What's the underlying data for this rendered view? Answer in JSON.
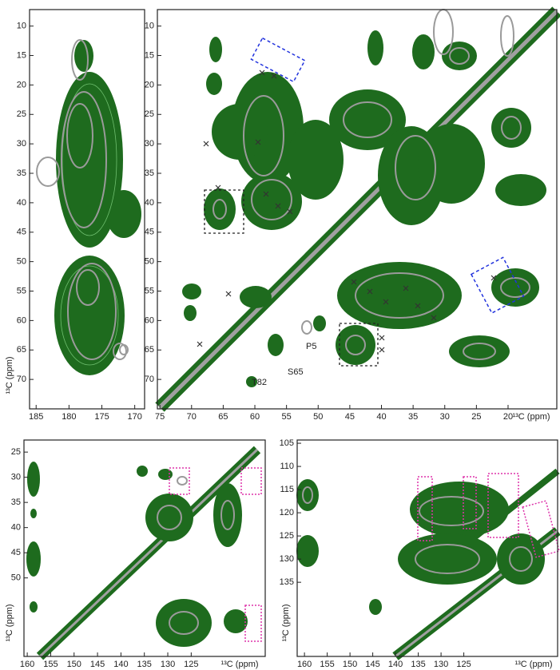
{
  "chart_data": [
    {
      "type": "contour",
      "xlim": [
        186,
        168.5
      ],
      "ylim": [
        7.2,
        75
      ],
      "xticks": [
        185,
        180,
        175,
        170
      ],
      "yticks": [
        10,
        15,
        20,
        25,
        30,
        35,
        40,
        45,
        50,
        55,
        60,
        65,
        70
      ],
      "ylabel": "¹³C (ppm)"
    },
    {
      "type": "contour",
      "xlim": [
        75.4,
        12.3
      ],
      "ylim": [
        7.2,
        75
      ],
      "xticks": [
        75,
        70,
        65,
        60,
        55,
        50,
        45,
        40,
        35,
        30,
        25,
        20
      ],
      "yticks": [
        10,
        15,
        20,
        25,
        30,
        35,
        40,
        45,
        50,
        55,
        60,
        65,
        70
      ],
      "xlabel": "¹³C (ppm)",
      "annotations": [
        "P5",
        "S65",
        "T82"
      ]
    },
    {
      "type": "contour",
      "xlim": [
        160.7,
        109.2
      ],
      "ylim": [
        22.6,
        65.6
      ],
      "xticks": [
        160,
        155,
        150,
        145,
        140,
        135,
        130,
        125
      ],
      "yticks": [
        25,
        30,
        35,
        40,
        45,
        50
      ],
      "xlabel": "¹³C (ppm)",
      "ylabel": "¹³C (ppm)"
    },
    {
      "type": "contour",
      "xlim": [
        161.6,
        104.4
      ],
      "ylim": [
        104.3,
        151
      ],
      "xticks": [
        160,
        155,
        150,
        145,
        140,
        135,
        130,
        125
      ],
      "yticks": [
        105,
        110,
        115,
        120,
        125,
        130,
        135
      ],
      "xlabel": "¹³C (ppm)",
      "ylabel": "¹³C (ppm)"
    }
  ]
}
